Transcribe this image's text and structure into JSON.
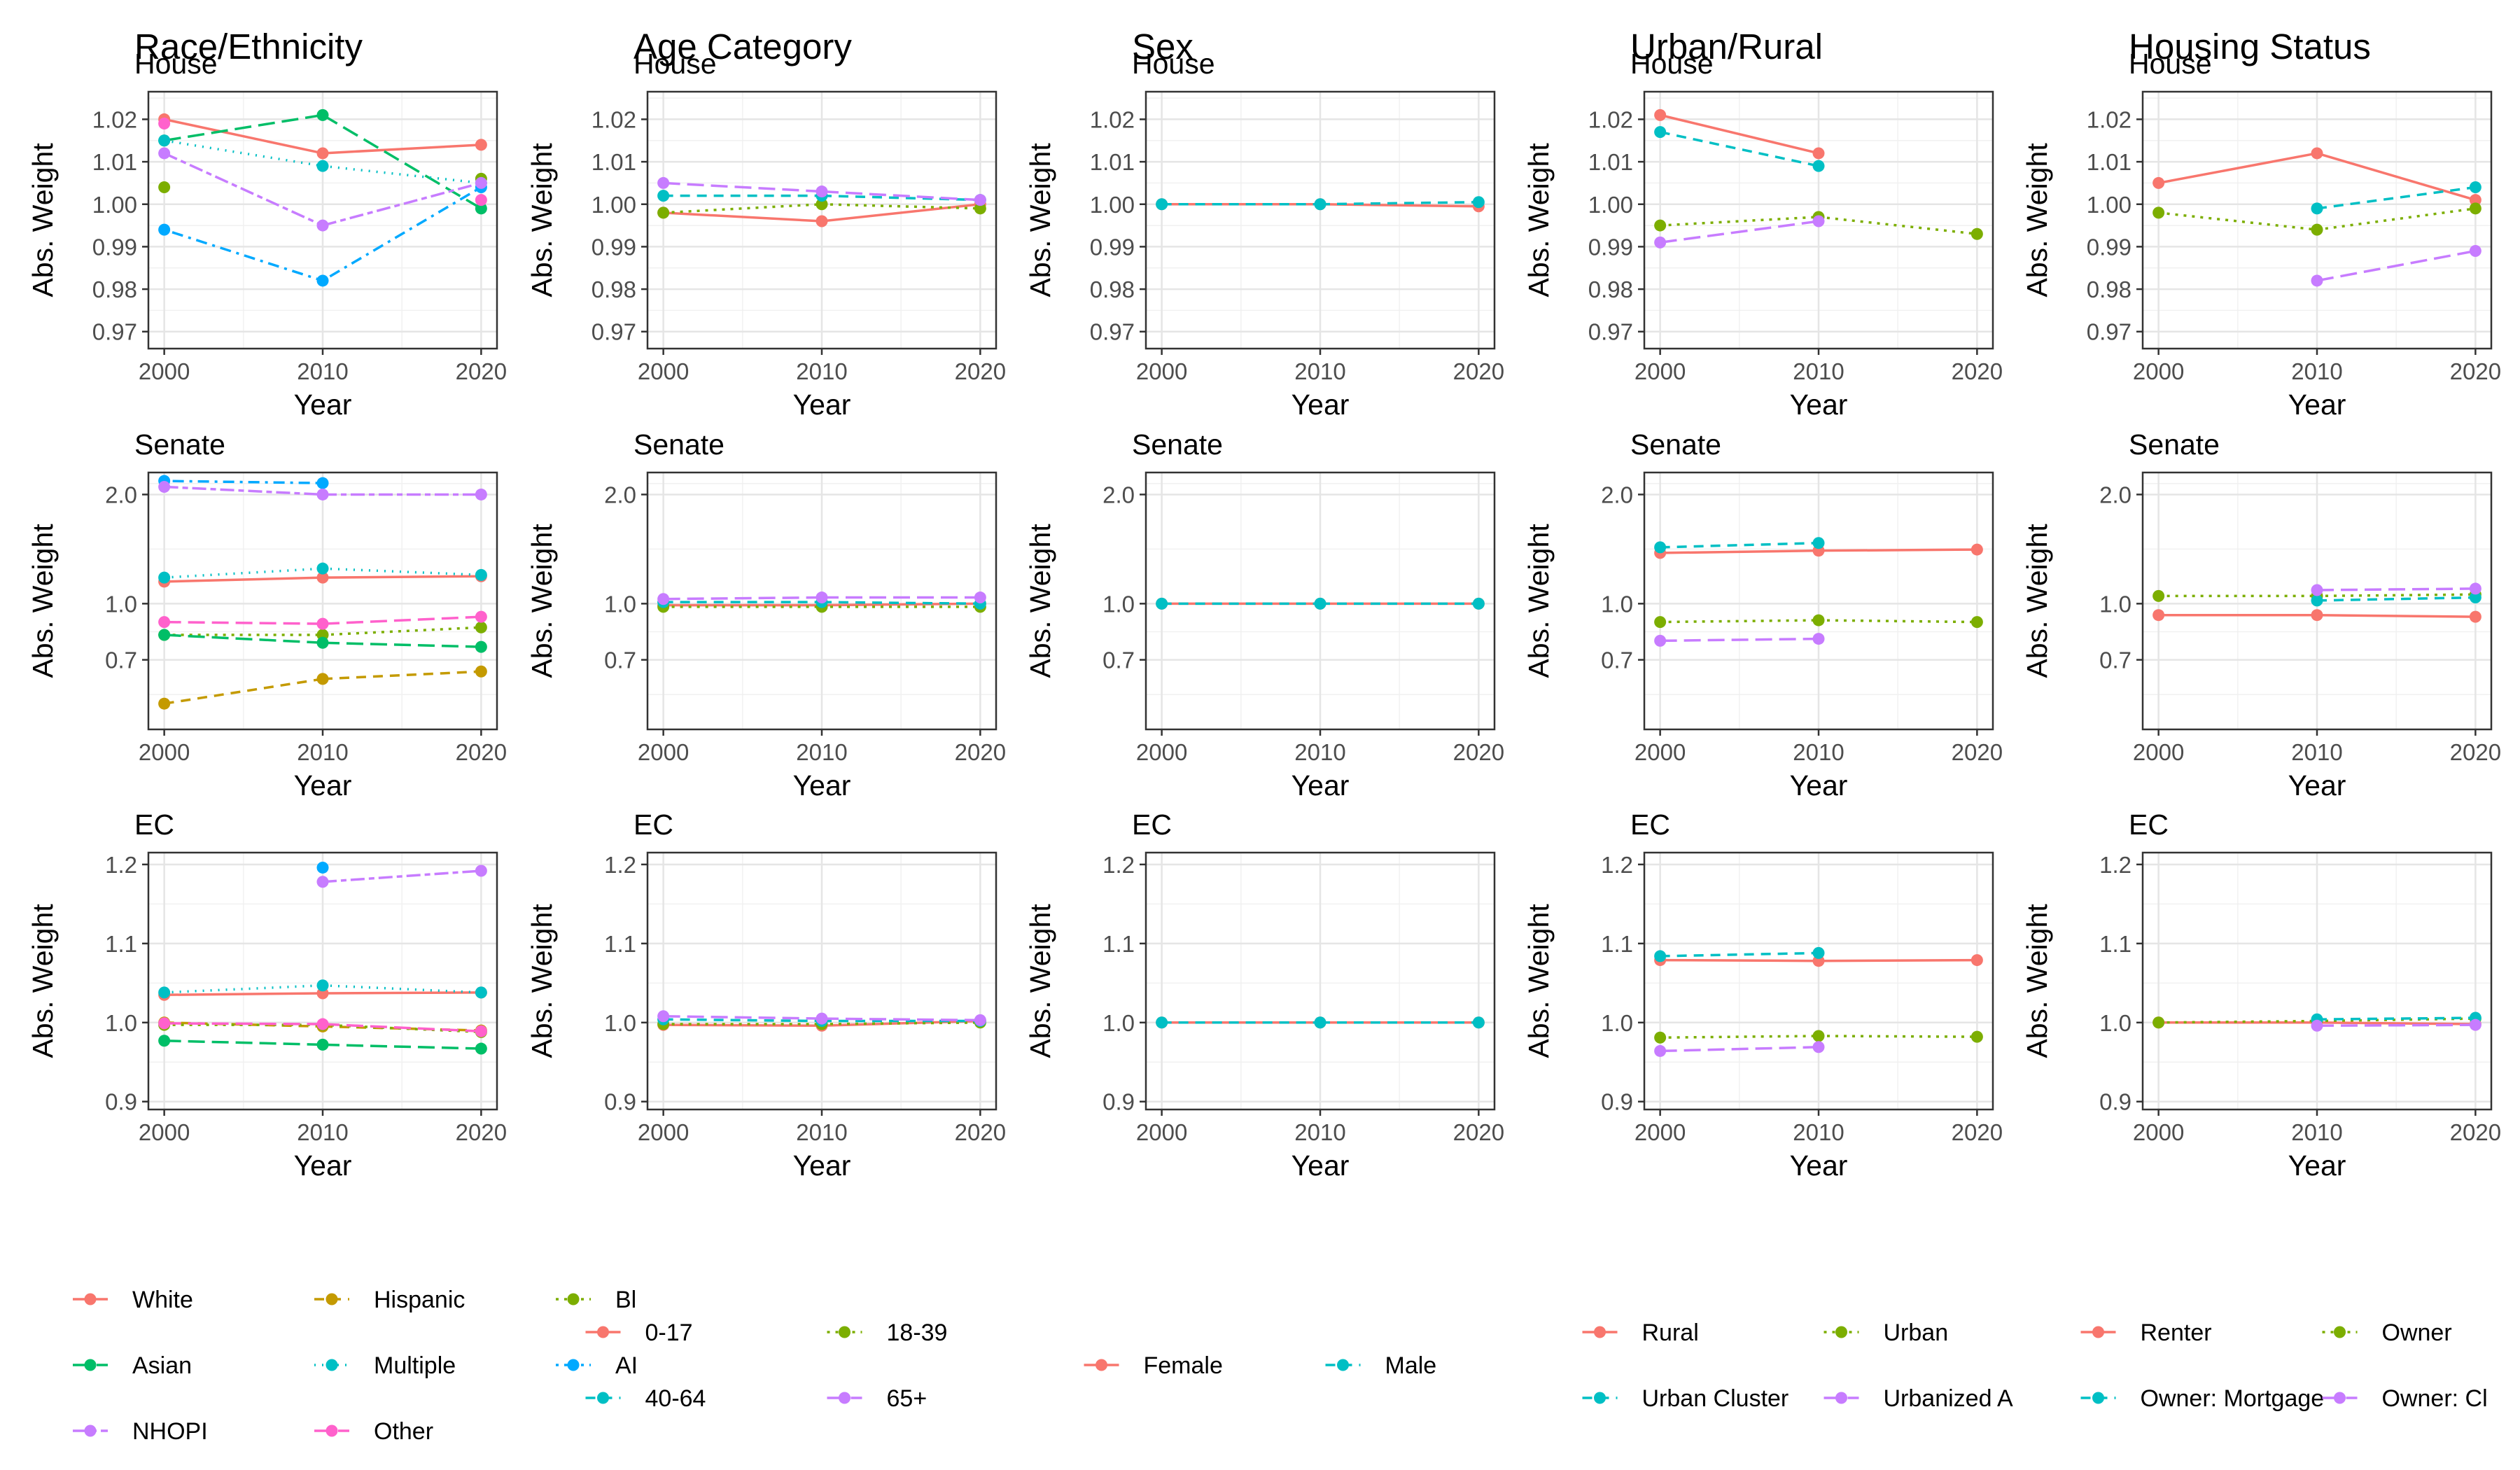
{
  "colors": {
    "White": "#f8766d",
    "Hispanic": "#c49a00",
    "Bl": "#7cae00",
    "Asian": "#00be67",
    "Multiple": "#00bfc4",
    "AI": "#00a9ff",
    "NHOPI": "#c77cff",
    "Other": "#ff61cc",
    "0-17": "#f8766d",
    "18-39": "#7cae00",
    "40-64": "#00bfc4",
    "65+": "#c77cff",
    "Female": "#f8766d",
    "Male": "#00bfc4",
    "Rural": "#f8766d",
    "Urban": "#7cae00",
    "Urban Cluster": "#00bfc4",
    "Urbanized A": "#c77cff",
    "Renter": "#f8766d",
    "Owner": "#7cae00",
    "Owner: Mortgage": "#00bfc4",
    "Owner: Cl": "#c77cff"
  },
  "chart_data": {
    "type": "line",
    "xlabel": "Year",
    "ylabel": "Abs. Weight",
    "x": [
      2000,
      2010,
      2020
    ],
    "rows": [
      {
        "label": "House",
        "scale": "linear",
        "ylim": [
          0.966,
          1.0265
        ],
        "ticks": [
          0.97,
          0.98,
          0.99,
          1.0,
          1.01,
          1.02
        ],
        "tick_labels": [
          "0.97",
          "0.98",
          "0.99",
          "1.00",
          "1.01",
          "1.02"
        ]
      },
      {
        "label": "Senate",
        "scale": "log",
        "ylim": [
          0.45,
          2.3
        ],
        "ticks": [
          0.7,
          1.0,
          2.0
        ],
        "tick_labels": [
          "0.7",
          "1.0",
          "2.0"
        ]
      },
      {
        "label": "EC",
        "scale": "linear",
        "ylim": [
          0.89,
          1.215
        ],
        "ticks": [
          0.9,
          1.0,
          1.1,
          1.2
        ],
        "tick_labels": [
          "0.9",
          "1.0",
          "1.1",
          "1.2"
        ]
      }
    ],
    "columns": [
      {
        "title": "Race/Ethnicity",
        "legend": {
          "ncol": 3,
          "items": [
            "White",
            "Hispanic",
            "Bl",
            "Asian",
            "Multiple",
            "AI",
            "NHOPI",
            "Other"
          ]
        },
        "series": [
          {
            "name": "White",
            "dash": "solid",
            "values": [
              [
                1.02,
                1.012,
                1.014
              ],
              [
                1.15,
                1.18,
                1.19
              ],
              [
                1.035,
                1.037,
                1.038
              ]
            ]
          },
          {
            "name": "Hispanic",
            "dash": "dash",
            "values": [
              [
                null,
                null,
                null
              ],
              [
                0.53,
                0.62,
                0.65
              ],
              [
                1.0,
                0.995,
                0.99
              ]
            ]
          },
          {
            "name": "Bl",
            "dash": "dot",
            "values": [
              [
                1.004,
                null,
                1.006
              ],
              [
                0.82,
                0.82,
                0.86
              ],
              [
                0.997,
                0.997,
                0.988
              ]
            ]
          },
          {
            "name": "Asian",
            "dash": "longdash",
            "values": [
              [
                1.015,
                1.021,
                0.999
              ],
              [
                0.82,
                0.78,
                0.76
              ],
              [
                0.977,
                0.972,
                0.967
              ]
            ]
          },
          {
            "name": "Multiple",
            "dash": "dotted",
            "values": [
              [
                1.015,
                1.009,
                1.005
              ],
              [
                1.18,
                1.25,
                1.2
              ],
              [
                1.038,
                1.047,
                1.038
              ]
            ]
          },
          {
            "name": "AI",
            "dash": "dotdash",
            "values": [
              [
                0.994,
                0.982,
                1.004
              ],
              [
                2.18,
                2.15,
                null
              ],
              [
                null,
                1.196,
                null
              ]
            ]
          },
          {
            "name": "NHOPI",
            "dash": "twodash",
            "values": [
              [
                1.012,
                0.995,
                1.005
              ],
              [
                2.1,
                2.0,
                2.0
              ],
              [
                null,
                1.178,
                1.192
              ]
            ]
          },
          {
            "name": "Other",
            "dash": "longdash",
            "values": [
              [
                1.019,
                null,
                1.001
              ],
              [
                0.89,
                0.88,
                0.92
              ],
              [
                0.999,
                0.998,
                0.989
              ]
            ]
          }
        ]
      },
      {
        "title": "Age Category",
        "legend": {
          "ncol": 2,
          "items": [
            "0-17",
            "18-39",
            "40-64",
            "65+"
          ]
        },
        "series": [
          {
            "name": "0-17",
            "dash": "solid",
            "values": [
              [
                0.998,
                0.996,
                1.0
              ],
              [
                0.99,
                0.99,
                1.0
              ],
              [
                0.997,
                0.996,
                1.002
              ]
            ]
          },
          {
            "name": "18-39",
            "dash": "dot",
            "values": [
              [
                0.998,
                1.0,
                0.999
              ],
              [
                0.98,
                0.98,
                0.98
              ],
              [
                0.998,
                0.998,
                1.0
              ]
            ]
          },
          {
            "name": "40-64",
            "dash": "dash",
            "values": [
              [
                1.002,
                1.002,
                1.001
              ],
              [
                1.01,
                1.01,
                1.0
              ],
              [
                1.004,
                1.002,
                1.002
              ]
            ]
          },
          {
            "name": "65+",
            "dash": "longdash",
            "values": [
              [
                1.005,
                1.003,
                1.001
              ],
              [
                1.03,
                1.04,
                1.04
              ],
              [
                1.008,
                1.005,
                1.003
              ]
            ]
          }
        ]
      },
      {
        "title": "Sex",
        "legend": {
          "ncol": 2,
          "items": [
            "Female",
            "Male"
          ]
        },
        "series": [
          {
            "name": "Female",
            "dash": "solid",
            "values": [
              [
                1.0,
                1.0,
                0.9995
              ],
              [
                1.0,
                1.0,
                1.0
              ],
              [
                1.0,
                1.0,
                1.0
              ]
            ]
          },
          {
            "name": "Male",
            "dash": "dash",
            "values": [
              [
                1.0,
                1.0,
                1.0005
              ],
              [
                1.0,
                1.0,
                1.0
              ],
              [
                1.0,
                1.0,
                1.0
              ]
            ]
          }
        ]
      },
      {
        "title": "Urban/Rural",
        "legend": {
          "ncol": 2,
          "items": [
            "Rural",
            "Urban",
            "Urban Cluster",
            "Urbanized A"
          ]
        },
        "series": [
          {
            "name": "Rural",
            "dash": "solid",
            "values": [
              [
                1.021,
                1.012,
                null
              ],
              [
                1.38,
                1.4,
                1.41
              ],
              [
                1.079,
                1.078,
                1.079
              ]
            ]
          },
          {
            "name": "Urban",
            "dash": "dot",
            "values": [
              [
                0.995,
                0.997,
                0.993
              ],
              [
                0.89,
                0.9,
                0.89
              ],
              [
                0.981,
                0.983,
                0.982
              ]
            ]
          },
          {
            "name": "Urban Cluster",
            "dash": "dash",
            "values": [
              [
                1.017,
                1.009,
                null
              ],
              [
                1.43,
                1.47,
                null
              ],
              [
                1.084,
                1.088,
                null
              ]
            ]
          },
          {
            "name": "Urbanized A",
            "dash": "longdash",
            "values": [
              [
                0.991,
                0.996,
                null
              ],
              [
                0.79,
                0.8,
                null
              ],
              [
                0.964,
                0.969,
                null
              ]
            ]
          }
        ]
      },
      {
        "title": "Housing Status",
        "legend": {
          "ncol": 2,
          "items": [
            "Renter",
            "Owner",
            "Owner: Mortgage",
            "Owner: Cl"
          ]
        },
        "series": [
          {
            "name": "Renter",
            "dash": "solid",
            "values": [
              [
                1.005,
                1.012,
                1.001
              ],
              [
                0.93,
                0.93,
                0.92
              ],
              [
                1.0,
                1.0,
                0.998
              ]
            ]
          },
          {
            "name": "Owner",
            "dash": "dot",
            "values": [
              [
                0.998,
                0.994,
                0.999
              ],
              [
                1.05,
                1.05,
                1.06
              ],
              [
                1.0,
                1.002,
                1.005
              ]
            ]
          },
          {
            "name": "Owner: Mortgage",
            "dash": "dash",
            "values": [
              [
                null,
                0.999,
                1.004
              ],
              [
                null,
                1.02,
                1.04
              ],
              [
                null,
                1.004,
                1.006
              ]
            ]
          },
          {
            "name": "Owner: Cl",
            "dash": "longdash",
            "values": [
              [
                null,
                0.982,
                0.989
              ],
              [
                null,
                1.09,
                1.1
              ],
              [
                null,
                0.996,
                0.997
              ]
            ]
          }
        ]
      }
    ]
  }
}
